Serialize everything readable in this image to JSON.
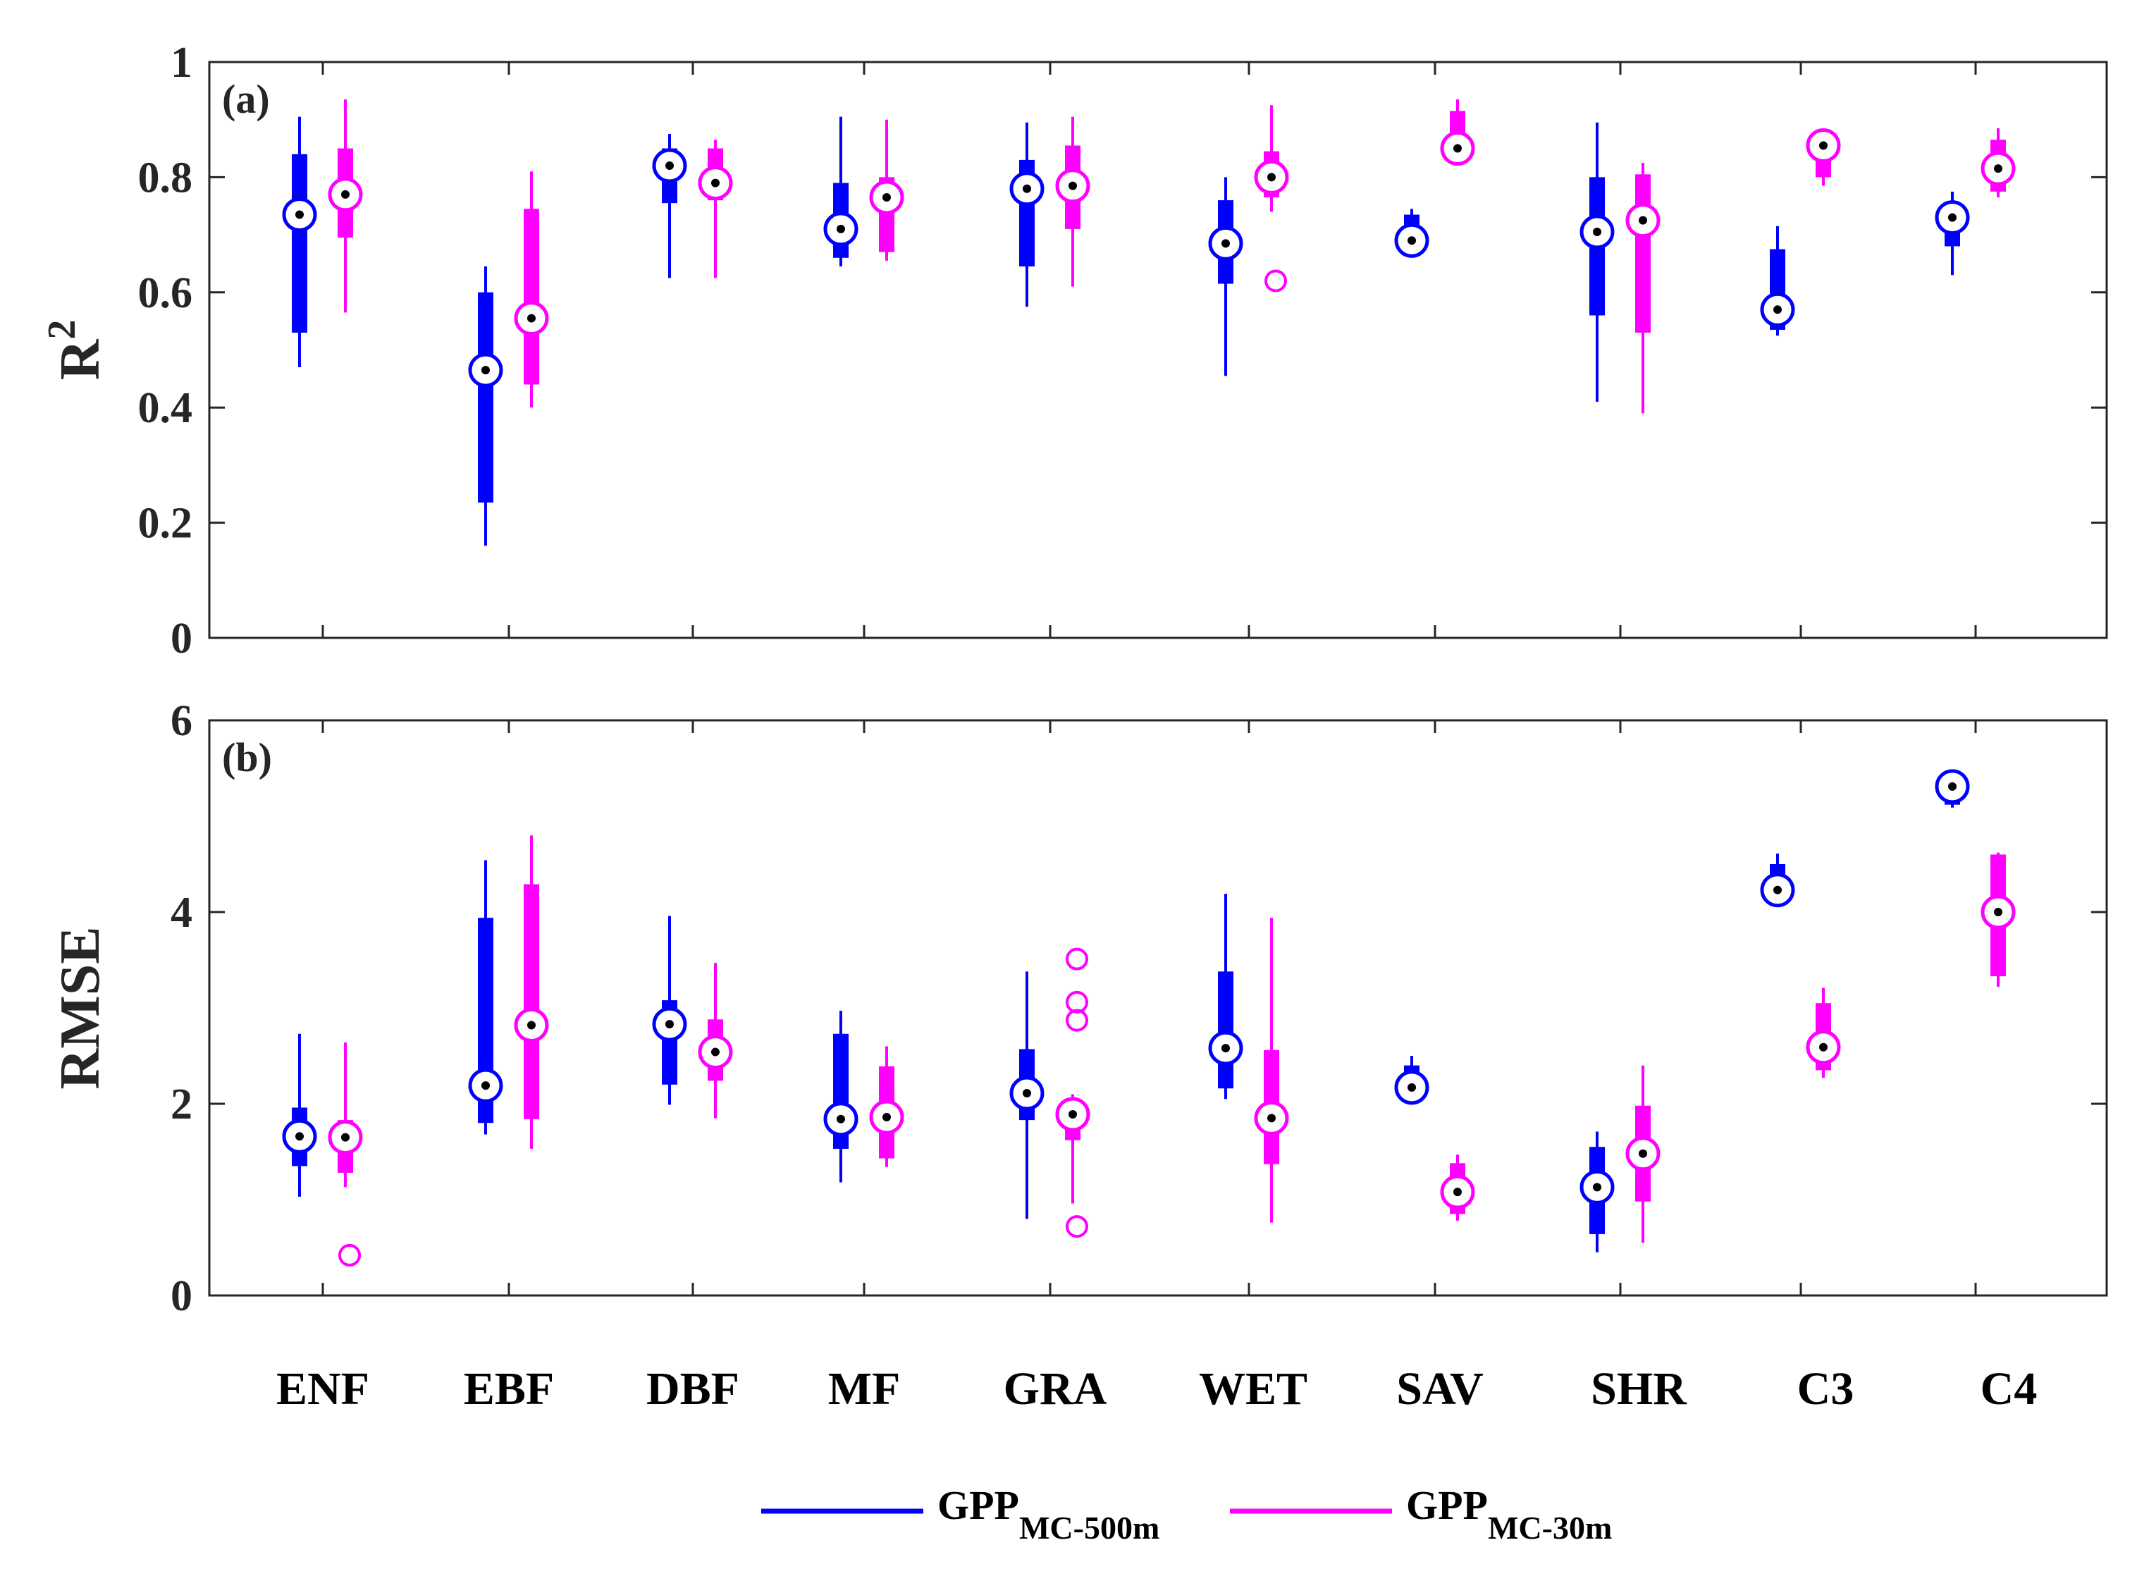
{
  "colors": {
    "series_500m": "#0000ff",
    "series_30m": "#ff00ff",
    "axis": "#262626",
    "median_dot": "#000000"
  },
  "legend": {
    "items": [
      {
        "base": "GPP",
        "sub": "MC-500m"
      },
      {
        "base": "GPP",
        "sub": "MC-30m"
      }
    ]
  },
  "chart_data": [
    {
      "type": "box",
      "panel": "(a)",
      "ylabel_base": "R",
      "ylabel_sup": "2",
      "ylim": [
        0,
        1
      ],
      "yticks": [
        0,
        0.2,
        0.4,
        0.6,
        0.8,
        1
      ],
      "ytick_labels": [
        "0",
        "0.2",
        "0.4",
        "0.6",
        "0.8",
        "1"
      ],
      "categories": [
        "ENF",
        "EBF",
        "DBF",
        "MF",
        "GRA",
        "WET",
        "SAV",
        "SHR",
        "C3",
        "C4"
      ],
      "series": [
        {
          "name": "GPP MC-500m",
          "boxes": [
            {
              "min": 0.47,
              "q1": 0.53,
              "median": 0.735,
              "q3": 0.84,
              "max": 0.905,
              "outliers": []
            },
            {
              "min": 0.16,
              "q1": 0.235,
              "median": 0.465,
              "q3": 0.6,
              "max": 0.645,
              "outliers": []
            },
            {
              "min": 0.625,
              "q1": 0.755,
              "median": 0.82,
              "q3": 0.85,
              "max": 0.875,
              "outliers": []
            },
            {
              "min": 0.645,
              "q1": 0.66,
              "median": 0.71,
              "q3": 0.79,
              "max": 0.905,
              "outliers": []
            },
            {
              "min": 0.575,
              "q1": 0.645,
              "median": 0.78,
              "q3": 0.83,
              "max": 0.895,
              "outliers": []
            },
            {
              "min": 0.455,
              "q1": 0.615,
              "median": 0.685,
              "q3": 0.76,
              "max": 0.8,
              "outliers": []
            },
            {
              "min": 0.665,
              "q1": 0.675,
              "median": 0.69,
              "q3": 0.735,
              "max": 0.745,
              "outliers": []
            },
            {
              "min": 0.41,
              "q1": 0.56,
              "median": 0.705,
              "q3": 0.8,
              "max": 0.895,
              "outliers": []
            },
            {
              "min": 0.525,
              "q1": 0.535,
              "median": 0.57,
              "q3": 0.675,
              "max": 0.715,
              "outliers": []
            },
            {
              "min": 0.63,
              "q1": 0.68,
              "median": 0.73,
              "q3": 0.755,
              "max": 0.775,
              "outliers": []
            }
          ]
        },
        {
          "name": "GPP MC-30m",
          "boxes": [
            {
              "min": 0.565,
              "q1": 0.695,
              "median": 0.77,
              "q3": 0.85,
              "max": 0.935,
              "outliers": []
            },
            {
              "min": 0.4,
              "q1": 0.44,
              "median": 0.555,
              "q3": 0.745,
              "max": 0.81,
              "outliers": []
            },
            {
              "min": 0.625,
              "q1": 0.76,
              "median": 0.79,
              "q3": 0.85,
              "max": 0.865,
              "outliers": []
            },
            {
              "min": 0.655,
              "q1": 0.67,
              "median": 0.765,
              "q3": 0.8,
              "max": 0.9,
              "outliers": []
            },
            {
              "min": 0.61,
              "q1": 0.71,
              "median": 0.785,
              "q3": 0.855,
              "max": 0.905,
              "outliers": []
            },
            {
              "min": 0.74,
              "q1": 0.765,
              "median": 0.8,
              "q3": 0.845,
              "max": 0.925,
              "outliers": [
                0.62
              ]
            },
            {
              "min": 0.83,
              "q1": 0.84,
              "median": 0.85,
              "q3": 0.915,
              "max": 0.935,
              "outliers": []
            },
            {
              "min": 0.39,
              "q1": 0.53,
              "median": 0.725,
              "q3": 0.805,
              "max": 0.825,
              "outliers": []
            },
            {
              "min": 0.785,
              "q1": 0.8,
              "median": 0.855,
              "q3": 0.86,
              "max": 0.865,
              "outliers": []
            },
            {
              "min": 0.765,
              "q1": 0.775,
              "median": 0.815,
              "q3": 0.865,
              "max": 0.885,
              "outliers": []
            }
          ]
        }
      ]
    },
    {
      "type": "box",
      "panel": "(b)",
      "ylabel_base": "RMSE",
      "ylabel_sup": "",
      "ylim": [
        0,
        6
      ],
      "yticks": [
        0,
        2,
        4,
        6
      ],
      "ytick_labels": [
        "0",
        "2",
        "4",
        "6"
      ],
      "categories": [
        "ENF",
        "EBF",
        "DBF",
        "MF",
        "GRA",
        "WET",
        "SAV",
        "SHR",
        "C3",
        "C4"
      ],
      "series": [
        {
          "name": "GPP MC-500m",
          "boxes": [
            {
              "min": 1.03,
              "q1": 1.35,
              "median": 1.66,
              "q3": 1.96,
              "max": 2.73,
              "outliers": []
            },
            {
              "min": 1.68,
              "q1": 1.8,
              "median": 2.19,
              "q3": 3.94,
              "max": 4.54,
              "outliers": []
            },
            {
              "min": 1.99,
              "q1": 2.2,
              "median": 2.83,
              "q3": 3.08,
              "max": 3.96,
              "outliers": []
            },
            {
              "min": 1.18,
              "q1": 1.53,
              "median": 1.84,
              "q3": 2.73,
              "max": 2.97,
              "outliers": []
            },
            {
              "min": 0.8,
              "q1": 1.83,
              "median": 2.11,
              "q3": 2.57,
              "max": 3.38,
              "outliers": []
            },
            {
              "min": 2.05,
              "q1": 2.16,
              "median": 2.58,
              "q3": 3.38,
              "max": 4.19,
              "outliers": []
            },
            {
              "min": 2.05,
              "q1": 2.1,
              "median": 2.17,
              "q3": 2.4,
              "max": 2.5,
              "outliers": []
            },
            {
              "min": 0.45,
              "q1": 0.64,
              "median": 1.13,
              "q3": 1.55,
              "max": 1.71,
              "outliers": []
            },
            {
              "min": 4.12,
              "q1": 4.16,
              "median": 4.23,
              "q3": 4.5,
              "max": 4.61,
              "outliers": []
            },
            {
              "min": 5.09,
              "q1": 5.12,
              "median": 5.31,
              "q3": 5.38,
              "max": 5.4,
              "outliers": []
            }
          ]
        },
        {
          "name": "GPP MC-30m",
          "boxes": [
            {
              "min": 1.13,
              "q1": 1.28,
              "median": 1.65,
              "q3": 1.83,
              "max": 2.64,
              "outliers": [
                0.42
              ]
            },
            {
              "min": 1.53,
              "q1": 1.84,
              "median": 2.82,
              "q3": 4.29,
              "max": 4.8,
              "outliers": []
            },
            {
              "min": 1.85,
              "q1": 2.24,
              "median": 2.54,
              "q3": 2.88,
              "max": 3.47,
              "outliers": []
            },
            {
              "min": 1.34,
              "q1": 1.43,
              "median": 1.86,
              "q3": 2.39,
              "max": 2.6,
              "outliers": []
            },
            {
              "min": 0.96,
              "q1": 1.62,
              "median": 1.89,
              "q3": 2.0,
              "max": 2.1,
              "outliers": [
                3.51,
                3.06,
                2.87,
                0.72
              ]
            },
            {
              "min": 0.76,
              "q1": 1.37,
              "median": 1.85,
              "q3": 2.56,
              "max": 3.94,
              "outliers": []
            },
            {
              "min": 0.78,
              "q1": 0.85,
              "median": 1.08,
              "q3": 1.38,
              "max": 1.47,
              "outliers": []
            },
            {
              "min": 0.55,
              "q1": 0.98,
              "median": 1.48,
              "q3": 1.98,
              "max": 2.4,
              "outliers": []
            },
            {
              "min": 2.27,
              "q1": 2.35,
              "median": 2.59,
              "q3": 3.05,
              "max": 3.21,
              "outliers": []
            },
            {
              "min": 3.22,
              "q1": 3.33,
              "median": 4.0,
              "q3": 4.6,
              "max": 4.62,
              "outliers": []
            }
          ]
        }
      ]
    }
  ]
}
